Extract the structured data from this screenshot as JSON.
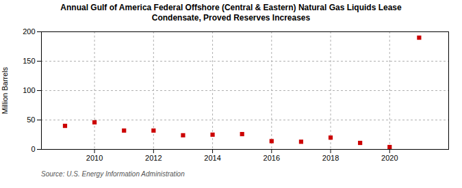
{
  "chart_data": {
    "type": "scatter",
    "title": "Annual Gulf of America Federal Offshore (Central & Eastern) Natural Gas Liquids Lease\nCondensate, Proved Reserves Increases",
    "ylabel": "Million Barrels",
    "source": "Source: U.S. Energy Information Administration",
    "x": [
      2009,
      2010,
      2011,
      2012,
      2013,
      2014,
      2015,
      2016,
      2017,
      2018,
      2019,
      2020,
      2021
    ],
    "values": [
      40,
      46,
      32,
      32,
      24,
      25,
      26,
      14,
      13,
      20,
      11,
      4,
      190
    ],
    "color": "#cc0000",
    "marker": "square",
    "xlim": [
      2008.2,
      2022.0
    ],
    "xticks": [
      2010,
      2012,
      2014,
      2016,
      2018,
      2020
    ],
    "ylim": [
      0,
      200
    ],
    "yticks": [
      0,
      50,
      100,
      150,
      200
    ],
    "grid": true
  }
}
